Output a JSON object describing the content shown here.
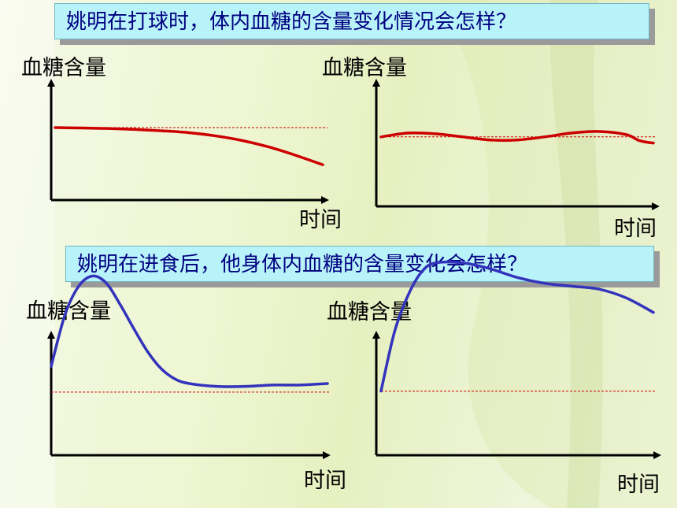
{
  "questions": [
    "姚明在打球时，体内血糖的含量变化情况会怎样？",
    "姚明在进食后，他身体内血糖的含量变化会怎样？"
  ],
  "colors": {
    "question_bg": "#b9f3fa",
    "question_text": "#000080",
    "exercise_curve": "#cc0000",
    "meal_curve": "#3333bb",
    "baseline": "#cc0000"
  },
  "chart_data": [
    {
      "type": "line",
      "ylabel": "血糖含量",
      "xlabel": "时间",
      "x": [
        0,
        0.1,
        0.2,
        0.3,
        0.4,
        0.5,
        0.6,
        0.7,
        0.8,
        0.9,
        1.0
      ],
      "series": [
        {
          "values": [
            0.78,
            0.775,
            0.77,
            0.76,
            0.745,
            0.725,
            0.69,
            0.64,
            0.57,
            0.48,
            0.38
          ]
        }
      ],
      "baseline": 0.78,
      "xlim": [
        0,
        1
      ],
      "ylim": [
        0,
        1.4
      ]
    },
    {
      "type": "line",
      "ylabel": "血糖含量",
      "xlabel": "时间",
      "x": [
        0,
        0.1,
        0.2,
        0.3,
        0.4,
        0.5,
        0.6,
        0.7,
        0.8,
        0.9,
        0.95,
        1.0
      ],
      "series": [
        {
          "values": [
            0.9,
            0.95,
            0.94,
            0.9,
            0.86,
            0.86,
            0.9,
            0.95,
            0.97,
            0.93,
            0.85,
            0.82
          ]
        }
      ],
      "baseline": 0.9,
      "xlim": [
        0,
        1
      ],
      "ylim": [
        0,
        1.4
      ]
    },
    {
      "type": "line",
      "ylabel": "血糖含量",
      "xlabel": "时间",
      "x": [
        0,
        0.05,
        0.1,
        0.15,
        0.2,
        0.25,
        0.3,
        0.35,
        0.4,
        0.45,
        0.5,
        0.6,
        0.7,
        0.8,
        0.9,
        1.0
      ],
      "series": [
        {
          "values": [
            0.62,
            0.98,
            1.18,
            1.25,
            1.2,
            1.05,
            0.88,
            0.72,
            0.6,
            0.53,
            0.5,
            0.48,
            0.48,
            0.49,
            0.49,
            0.5
          ]
        }
      ],
      "baseline": 0.44,
      "xlim": [
        0,
        1
      ],
      "ylim": [
        0,
        1.4
      ]
    },
    {
      "type": "line",
      "ylabel": "血糖含量",
      "xlabel": "时间",
      "x": [
        0,
        0.05,
        0.1,
        0.15,
        0.2,
        0.3,
        0.4,
        0.5,
        0.6,
        0.7,
        0.8,
        0.9,
        1.0
      ],
      "series": [
        {
          "values": [
            0.44,
            0.85,
            1.1,
            1.26,
            1.32,
            1.32,
            1.28,
            1.22,
            1.18,
            1.16,
            1.14,
            1.08,
            0.98
          ]
        }
      ],
      "baseline": 0.44,
      "xlim": [
        0,
        1
      ],
      "ylim": [
        0,
        1.4
      ]
    }
  ]
}
